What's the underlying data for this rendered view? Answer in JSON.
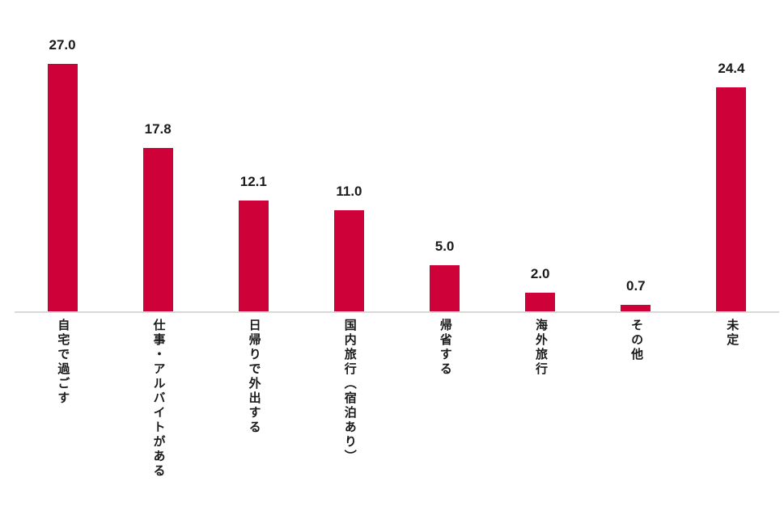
{
  "chart_data": {
    "type": "bar",
    "title": "",
    "xlabel": "",
    "ylabel": "",
    "categories": [
      "自宅で過ごす",
      "仕事・アルバイトがある",
      "日帰りで外出する",
      "国内旅行（宿泊あり）",
      "帰省する",
      "海外旅行",
      "その他",
      "未定"
    ],
    "values": [
      27.0,
      17.8,
      12.1,
      11.0,
      5.0,
      2.0,
      0.7,
      24.4
    ],
    "value_labels": [
      "27.0",
      "17.8",
      "12.1",
      "11.0",
      "5.0",
      "2.0",
      "0.7",
      "24.4"
    ],
    "ylim": [
      0,
      30
    ],
    "grid": false,
    "legend": false,
    "category_label_orientation": "vertical",
    "colors": {
      "bar": "#CE0238",
      "value_label_text": "#1a1a1a",
      "category_label_text": "#1a1a1a",
      "axis_line": "#d9d9d9",
      "background": "#ffffff"
    }
  }
}
